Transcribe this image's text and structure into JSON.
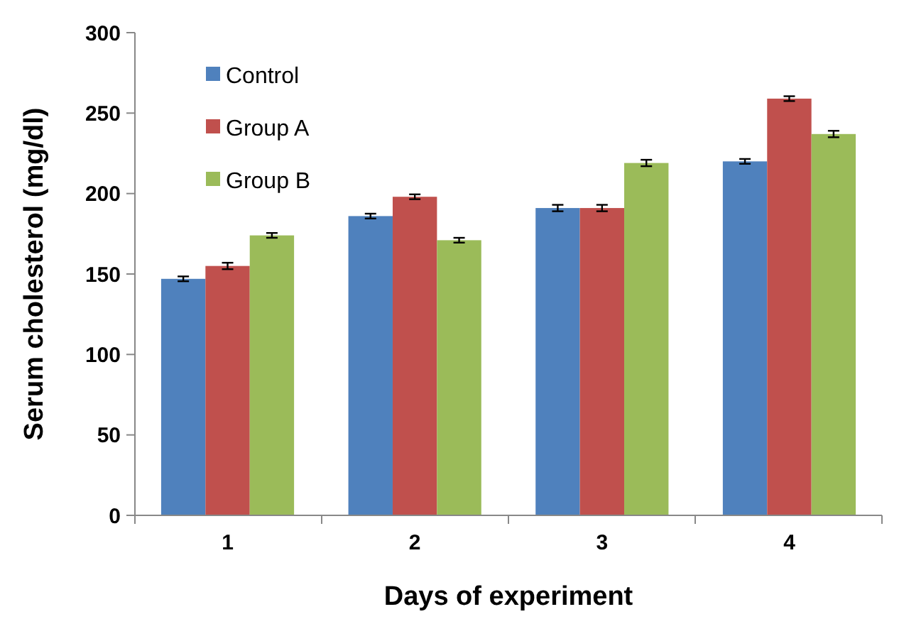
{
  "chart_data": {
    "type": "bar",
    "xlabel": "Days of experiment",
    "ylabel": "Serum cholesterol (mg/dl)",
    "categories": [
      "1",
      "2",
      "3",
      "4"
    ],
    "series": [
      {
        "name": "Control",
        "color": "#4f81bd",
        "values": [
          147,
          186,
          191,
          220
        ],
        "errors": [
          1.5,
          1.5,
          2,
          1.5
        ]
      },
      {
        "name": "Group A",
        "color": "#c0504d",
        "values": [
          155,
          198,
          191,
          259
        ],
        "errors": [
          2,
          1.5,
          2,
          1.5
        ]
      },
      {
        "name": "Group B",
        "color": "#9bbb59",
        "values": [
          174,
          171,
          219,
          237
        ],
        "errors": [
          1.5,
          1.5,
          2,
          2
        ]
      }
    ],
    "ylim": [
      0,
      300
    ],
    "yticks": [
      0,
      50,
      100,
      150,
      200,
      250,
      300
    ],
    "legend": "top left",
    "grid": false
  }
}
